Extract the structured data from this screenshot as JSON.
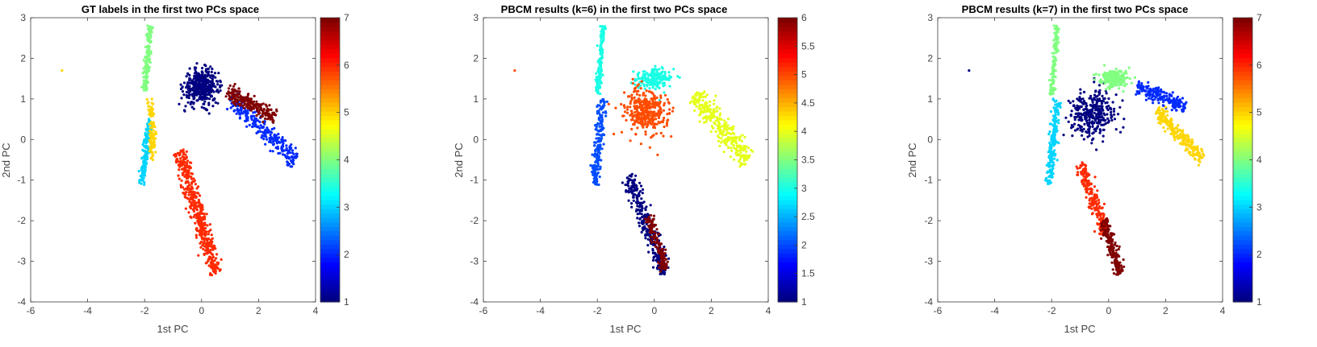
{
  "chart_data": [
    {
      "type": "scatter",
      "title": "GT labels in the first two PCs space",
      "xlabel": "1st PC",
      "ylabel": "2nd PC",
      "xlim": [
        -6,
        4
      ],
      "ylim": [
        -4,
        3
      ],
      "xticks": [
        "-6",
        "-4",
        "-2",
        "0",
        "2",
        "4"
      ],
      "yticks": [
        "-4",
        "-3",
        "-2",
        "-1",
        "0",
        "1",
        "2",
        "3"
      ],
      "colorbar": {
        "min": 1,
        "max": 7,
        "ticks": [
          "1",
          "2",
          "3",
          "4",
          "5",
          "6",
          "7"
        ]
      },
      "colormap": "jet",
      "clusters": [
        {
          "label": 1,
          "center": [
            0.0,
            1.3
          ],
          "shape": "blob",
          "spread": [
            0.55,
            0.35
          ],
          "n": 420
        },
        {
          "label": 2,
          "from": [
            1.0,
            1.0
          ],
          "to": [
            3.3,
            -0.5
          ],
          "width": 0.12,
          "n": 260
        },
        {
          "label": 3,
          "from": [
            -1.8,
            0.5
          ],
          "to": [
            -2.1,
            -1.1
          ],
          "width": 0.06,
          "n": 160
        },
        {
          "label": 4,
          "from": [
            -1.8,
            2.8
          ],
          "to": [
            -2.0,
            1.2
          ],
          "width": 0.05,
          "n": 160
        },
        {
          "label": 5,
          "from": [
            -1.8,
            1.0
          ],
          "to": [
            -1.7,
            -0.5
          ],
          "width": 0.06,
          "n": 100
        },
        {
          "label": 6,
          "from": [
            -0.8,
            -0.3
          ],
          "to": [
            0.5,
            -3.3
          ],
          "width": 0.12,
          "n": 460
        },
        {
          "label": 7,
          "from": [
            0.9,
            1.2
          ],
          "to": [
            2.6,
            0.55
          ],
          "width": 0.1,
          "n": 220
        }
      ],
      "outliers": [
        {
          "x": -4.9,
          "y": 1.7,
          "label": 5
        }
      ]
    },
    {
      "type": "scatter",
      "title": "PBCM results (k=6) in the first two PCs space",
      "xlabel": "1st PC",
      "ylabel": "2nd PC",
      "xlim": [
        -6,
        4
      ],
      "ylim": [
        -4,
        3
      ],
      "xticks": [
        "-6",
        "-4",
        "-2",
        "0",
        "2",
        "4"
      ],
      "yticks": [
        "-4",
        "-3",
        "-2",
        "-1",
        "0",
        "1",
        "2",
        "3"
      ],
      "colorbar": {
        "min": 1,
        "max": 6,
        "ticks": [
          "1",
          "1.5",
          "2",
          "2.5",
          "3",
          "3.5",
          "4",
          "4.5",
          "5",
          "5.5",
          "6"
        ]
      },
      "colormap": "jet",
      "clusters": [
        {
          "label": 1,
          "from": [
            -0.9,
            -0.9
          ],
          "to": [
            0.4,
            -3.3
          ],
          "width": 0.12,
          "n": 300
        },
        {
          "label": 2,
          "from": [
            -1.8,
            1.0
          ],
          "to": [
            -2.1,
            -1.1
          ],
          "width": 0.08,
          "n": 200
        },
        {
          "label": 3,
          "from": [
            -1.8,
            2.8
          ],
          "to": [
            -2.0,
            1.1
          ],
          "width": 0.05,
          "n": 150
        },
        {
          "label": 3,
          "center": [
            0.0,
            1.5
          ],
          "shape": "blob",
          "spread": [
            0.5,
            0.2
          ],
          "n": 200
        },
        {
          "label": 4,
          "from": [
            1.4,
            1.1
          ],
          "to": [
            3.3,
            -0.5
          ],
          "width": 0.14,
          "n": 320
        },
        {
          "label": 5,
          "center": [
            -0.3,
            0.7
          ],
          "shape": "blob",
          "spread": [
            0.7,
            0.45
          ],
          "n": 360
        },
        {
          "label": 6,
          "from": [
            -0.2,
            -1.9
          ],
          "to": [
            0.4,
            -3.2
          ],
          "width": 0.08,
          "n": 140
        }
      ],
      "outliers": [
        {
          "x": -4.9,
          "y": 1.7,
          "label": 5
        }
      ]
    },
    {
      "type": "scatter",
      "title": "PBCM results (k=7) in the first two PCs space",
      "xlabel": "1st PC",
      "ylabel": "2nd PC",
      "xlim": [
        -6,
        4
      ],
      "ylim": [
        -4,
        3
      ],
      "xticks": [
        "-6",
        "-4",
        "-2",
        "0",
        "2",
        "4"
      ],
      "yticks": [
        "-4",
        "-3",
        "-2",
        "-1",
        "0",
        "1",
        "2",
        "3"
      ],
      "colorbar": {
        "min": 1,
        "max": 7,
        "ticks": [
          "1",
          "2",
          "3",
          "4",
          "5",
          "6",
          "7"
        ]
      },
      "colormap": "jet",
      "clusters": [
        {
          "label": 1,
          "center": [
            -0.6,
            0.6
          ],
          "shape": "blob",
          "spread": [
            0.7,
            0.5
          ],
          "n": 330
        },
        {
          "label": 2,
          "from": [
            1.0,
            1.3
          ],
          "to": [
            2.7,
            0.8
          ],
          "width": 0.1,
          "n": 200
        },
        {
          "label": 3,
          "from": [
            -1.8,
            1.0
          ],
          "to": [
            -2.1,
            -1.1
          ],
          "width": 0.07,
          "n": 200
        },
        {
          "label": 4,
          "from": [
            -1.8,
            2.8
          ],
          "to": [
            -2.0,
            1.1
          ],
          "width": 0.05,
          "n": 150
        },
        {
          "label": 4,
          "center": [
            0.2,
            1.5
          ],
          "shape": "blob",
          "spread": [
            0.45,
            0.2
          ],
          "n": 200
        },
        {
          "label": 5,
          "from": [
            1.7,
            0.7
          ],
          "to": [
            3.3,
            -0.5
          ],
          "width": 0.1,
          "n": 240
        },
        {
          "label": 6,
          "from": [
            -1.0,
            -0.6
          ],
          "to": [
            -0.1,
            -2.3
          ],
          "width": 0.1,
          "n": 220
        },
        {
          "label": 7,
          "from": [
            -0.2,
            -2.0
          ],
          "to": [
            0.4,
            -3.3
          ],
          "width": 0.09,
          "n": 180
        }
      ],
      "outliers": [
        {
          "x": -4.9,
          "y": 1.7,
          "label": 1
        }
      ]
    }
  ]
}
